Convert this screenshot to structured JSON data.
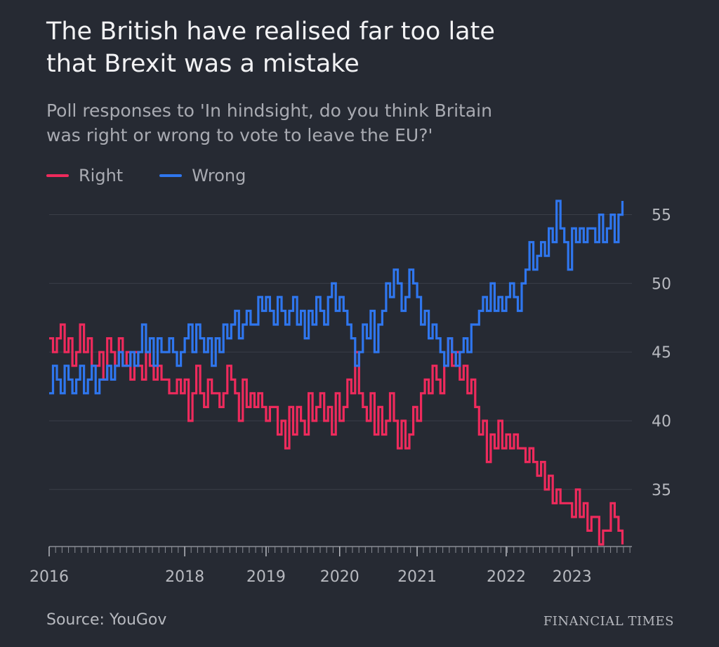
{
  "header": {
    "title_line1": "The British have realised far too late",
    "title_line2": "that Brexit was a mistake",
    "subtitle_line1": "Poll responses to 'In hindsight, do you think Britain",
    "subtitle_line2": "was right or wrong to vote to leave the EU?'"
  },
  "legend": {
    "right_label": "Right",
    "wrong_label": "Wrong"
  },
  "footer": {
    "source": "Source: YouGov",
    "brand": "FINANCIAL TIMES"
  },
  "colors": {
    "background": "#262a33",
    "right": "#ee2a5c",
    "wrong": "#2f76ee",
    "grid": "#3a3e48",
    "axis_text": "#b7b9bf"
  },
  "chart_data": {
    "type": "line",
    "title": "The British have realised far too late that Brexit was a mistake",
    "subtitle": "Poll responses to 'In hindsight, do you think Britain was right or wrong to vote to leave the EU?'",
    "xlabel": "",
    "ylabel": "",
    "ylim": [
      31,
      56
    ],
    "yticks": [
      35,
      40,
      45,
      50,
      55
    ],
    "xticks": [
      {
        "label": "2016",
        "x": 2016.0
      },
      {
        "label": "2018",
        "x": 2017.75
      },
      {
        "label": "2019",
        "x": 2018.8
      },
      {
        "label": "2020",
        "x": 2019.75
      },
      {
        "label": "2021",
        "x": 2020.75
      },
      {
        "label": "2022",
        "x": 2021.9
      },
      {
        "label": "2023",
        "x": 2022.75
      }
    ],
    "xlim": [
      2016.0,
      2023.55
    ],
    "grid": true,
    "legend_position": "top-left",
    "series": [
      {
        "name": "Right",
        "points": [
          [
            2016.0,
            46
          ],
          [
            2016.05,
            45
          ],
          [
            2016.1,
            46
          ],
          [
            2016.15,
            47
          ],
          [
            2016.2,
            45
          ],
          [
            2016.25,
            46
          ],
          [
            2016.3,
            44
          ],
          [
            2016.35,
            45
          ],
          [
            2016.4,
            47
          ],
          [
            2016.45,
            45
          ],
          [
            2016.5,
            46
          ],
          [
            2016.55,
            44
          ],
          [
            2016.6,
            44
          ],
          [
            2016.65,
            45
          ],
          [
            2016.7,
            43
          ],
          [
            2016.75,
            46
          ],
          [
            2016.8,
            45
          ],
          [
            2016.85,
            44
          ],
          [
            2016.9,
            46
          ],
          [
            2016.95,
            44
          ],
          [
            2017.0,
            45
          ],
          [
            2017.05,
            43
          ],
          [
            2017.1,
            45
          ],
          [
            2017.15,
            44
          ],
          [
            2017.2,
            43
          ],
          [
            2017.25,
            45
          ],
          [
            2017.3,
            44
          ],
          [
            2017.35,
            43
          ],
          [
            2017.4,
            44
          ],
          [
            2017.45,
            43
          ],
          [
            2017.5,
            43
          ],
          [
            2017.55,
            42
          ],
          [
            2017.6,
            42
          ],
          [
            2017.65,
            43
          ],
          [
            2017.7,
            42
          ],
          [
            2017.75,
            43
          ],
          [
            2017.8,
            40
          ],
          [
            2017.85,
            42
          ],
          [
            2017.9,
            44
          ],
          [
            2017.95,
            42
          ],
          [
            2018.0,
            41
          ],
          [
            2018.05,
            43
          ],
          [
            2018.1,
            42
          ],
          [
            2018.15,
            42
          ],
          [
            2018.2,
            41
          ],
          [
            2018.25,
            42
          ],
          [
            2018.3,
            44
          ],
          [
            2018.35,
            43
          ],
          [
            2018.4,
            42
          ],
          [
            2018.45,
            40
          ],
          [
            2018.5,
            43
          ],
          [
            2018.55,
            41
          ],
          [
            2018.6,
            42
          ],
          [
            2018.65,
            41
          ],
          [
            2018.7,
            42
          ],
          [
            2018.75,
            41
          ],
          [
            2018.8,
            40
          ],
          [
            2018.85,
            41
          ],
          [
            2018.9,
            41
          ],
          [
            2018.95,
            39
          ],
          [
            2019.0,
            40
          ],
          [
            2019.05,
            38
          ],
          [
            2019.1,
            41
          ],
          [
            2019.15,
            39
          ],
          [
            2019.2,
            41
          ],
          [
            2019.25,
            40
          ],
          [
            2019.3,
            39
          ],
          [
            2019.35,
            42
          ],
          [
            2019.4,
            40
          ],
          [
            2019.45,
            41
          ],
          [
            2019.5,
            42
          ],
          [
            2019.55,
            40
          ],
          [
            2019.6,
            41
          ],
          [
            2019.65,
            39
          ],
          [
            2019.7,
            42
          ],
          [
            2019.75,
            40
          ],
          [
            2019.8,
            41
          ],
          [
            2019.85,
            43
          ],
          [
            2019.9,
            42
          ],
          [
            2019.95,
            45
          ],
          [
            2020.0,
            42
          ],
          [
            2020.05,
            41
          ],
          [
            2020.1,
            40
          ],
          [
            2020.15,
            42
          ],
          [
            2020.2,
            39
          ],
          [
            2020.25,
            41
          ],
          [
            2020.3,
            39
          ],
          [
            2020.35,
            40
          ],
          [
            2020.4,
            42
          ],
          [
            2020.45,
            40
          ],
          [
            2020.5,
            38
          ],
          [
            2020.55,
            40
          ],
          [
            2020.6,
            38
          ],
          [
            2020.65,
            39
          ],
          [
            2020.7,
            41
          ],
          [
            2020.75,
            40
          ],
          [
            2020.8,
            42
          ],
          [
            2020.85,
            43
          ],
          [
            2020.9,
            42
          ],
          [
            2020.95,
            44
          ],
          [
            2021.0,
            43
          ],
          [
            2021.05,
            42
          ],
          [
            2021.1,
            44
          ],
          [
            2021.15,
            46
          ],
          [
            2021.2,
            44
          ],
          [
            2021.25,
            45
          ],
          [
            2021.3,
            43
          ],
          [
            2021.35,
            44
          ],
          [
            2021.4,
            42
          ],
          [
            2021.45,
            43
          ],
          [
            2021.5,
            41
          ],
          [
            2021.55,
            39
          ],
          [
            2021.6,
            40
          ],
          [
            2021.65,
            37
          ],
          [
            2021.7,
            39
          ],
          [
            2021.75,
            38
          ],
          [
            2021.8,
            40
          ],
          [
            2021.85,
            38
          ],
          [
            2021.9,
            39
          ],
          [
            2021.95,
            38
          ],
          [
            2022.0,
            39
          ],
          [
            2022.05,
            38
          ],
          [
            2022.1,
            38
          ],
          [
            2022.15,
            37
          ],
          [
            2022.2,
            38
          ],
          [
            2022.25,
            37
          ],
          [
            2022.3,
            36
          ],
          [
            2022.35,
            37
          ],
          [
            2022.4,
            35
          ],
          [
            2022.45,
            36
          ],
          [
            2022.5,
            34
          ],
          [
            2022.55,
            35
          ],
          [
            2022.6,
            34
          ],
          [
            2022.65,
            34
          ],
          [
            2022.7,
            34
          ],
          [
            2022.75,
            33
          ],
          [
            2022.8,
            35
          ],
          [
            2022.85,
            33
          ],
          [
            2022.9,
            34
          ],
          [
            2022.95,
            32
          ],
          [
            2023.0,
            33
          ],
          [
            2023.05,
            33
          ],
          [
            2023.1,
            31
          ],
          [
            2023.15,
            32
          ],
          [
            2023.2,
            32
          ],
          [
            2023.25,
            34
          ],
          [
            2023.3,
            33
          ],
          [
            2023.35,
            32
          ],
          [
            2023.4,
            31
          ]
        ]
      },
      {
        "name": "Wrong",
        "points": [
          [
            2016.0,
            42
          ],
          [
            2016.05,
            44
          ],
          [
            2016.1,
            43
          ],
          [
            2016.15,
            42
          ],
          [
            2016.2,
            44
          ],
          [
            2016.25,
            43
          ],
          [
            2016.3,
            42
          ],
          [
            2016.35,
            43
          ],
          [
            2016.4,
            44
          ],
          [
            2016.45,
            42
          ],
          [
            2016.5,
            43
          ],
          [
            2016.55,
            44
          ],
          [
            2016.6,
            42
          ],
          [
            2016.65,
            43
          ],
          [
            2016.7,
            43
          ],
          [
            2016.75,
            44
          ],
          [
            2016.8,
            43
          ],
          [
            2016.85,
            44
          ],
          [
            2016.9,
            45
          ],
          [
            2016.95,
            44
          ],
          [
            2017.0,
            44
          ],
          [
            2017.05,
            45
          ],
          [
            2017.1,
            44
          ],
          [
            2017.15,
            45
          ],
          [
            2017.2,
            47
          ],
          [
            2017.25,
            45
          ],
          [
            2017.3,
            46
          ],
          [
            2017.35,
            44
          ],
          [
            2017.4,
            46
          ],
          [
            2017.45,
            45
          ],
          [
            2017.5,
            45
          ],
          [
            2017.55,
            46
          ],
          [
            2017.6,
            45
          ],
          [
            2017.65,
            44
          ],
          [
            2017.7,
            45
          ],
          [
            2017.75,
            46
          ],
          [
            2017.8,
            47
          ],
          [
            2017.85,
            45
          ],
          [
            2017.9,
            47
          ],
          [
            2017.95,
            46
          ],
          [
            2018.0,
            45
          ],
          [
            2018.05,
            46
          ],
          [
            2018.1,
            44
          ],
          [
            2018.15,
            46
          ],
          [
            2018.2,
            45
          ],
          [
            2018.25,
            47
          ],
          [
            2018.3,
            46
          ],
          [
            2018.35,
            47
          ],
          [
            2018.4,
            48
          ],
          [
            2018.45,
            46
          ],
          [
            2018.5,
            47
          ],
          [
            2018.55,
            48
          ],
          [
            2018.6,
            47
          ],
          [
            2018.65,
            47
          ],
          [
            2018.7,
            49
          ],
          [
            2018.75,
            48
          ],
          [
            2018.8,
            49
          ],
          [
            2018.85,
            48
          ],
          [
            2018.9,
            47
          ],
          [
            2018.95,
            49
          ],
          [
            2019.0,
            48
          ],
          [
            2019.05,
            47
          ],
          [
            2019.1,
            48
          ],
          [
            2019.15,
            49
          ],
          [
            2019.2,
            47
          ],
          [
            2019.25,
            48
          ],
          [
            2019.3,
            46
          ],
          [
            2019.35,
            48
          ],
          [
            2019.4,
            47
          ],
          [
            2019.45,
            49
          ],
          [
            2019.5,
            48
          ],
          [
            2019.55,
            47
          ],
          [
            2019.6,
            49
          ],
          [
            2019.65,
            50
          ],
          [
            2019.7,
            48
          ],
          [
            2019.75,
            49
          ],
          [
            2019.8,
            48
          ],
          [
            2019.85,
            47
          ],
          [
            2019.9,
            46
          ],
          [
            2019.95,
            44
          ],
          [
            2020.0,
            45
          ],
          [
            2020.05,
            47
          ],
          [
            2020.1,
            46
          ],
          [
            2020.15,
            48
          ],
          [
            2020.2,
            45
          ],
          [
            2020.25,
            47
          ],
          [
            2020.3,
            48
          ],
          [
            2020.35,
            50
          ],
          [
            2020.4,
            49
          ],
          [
            2020.45,
            51
          ],
          [
            2020.5,
            50
          ],
          [
            2020.55,
            48
          ],
          [
            2020.6,
            49
          ],
          [
            2020.65,
            51
          ],
          [
            2020.7,
            50
          ],
          [
            2020.75,
            49
          ],
          [
            2020.8,
            47
          ],
          [
            2020.85,
            48
          ],
          [
            2020.9,
            46
          ],
          [
            2020.95,
            47
          ],
          [
            2021.0,
            46
          ],
          [
            2021.05,
            45
          ],
          [
            2021.1,
            44
          ],
          [
            2021.15,
            46
          ],
          [
            2021.2,
            45
          ],
          [
            2021.25,
            44
          ],
          [
            2021.3,
            45
          ],
          [
            2021.35,
            46
          ],
          [
            2021.4,
            45
          ],
          [
            2021.45,
            47
          ],
          [
            2021.5,
            47
          ],
          [
            2021.55,
            48
          ],
          [
            2021.6,
            49
          ],
          [
            2021.65,
            48
          ],
          [
            2021.7,
            50
          ],
          [
            2021.75,
            48
          ],
          [
            2021.8,
            49
          ],
          [
            2021.85,
            48
          ],
          [
            2021.9,
            49
          ],
          [
            2021.95,
            50
          ],
          [
            2022.0,
            49
          ],
          [
            2022.05,
            48
          ],
          [
            2022.1,
            50
          ],
          [
            2022.15,
            51
          ],
          [
            2022.2,
            53
          ],
          [
            2022.25,
            51
          ],
          [
            2022.3,
            52
          ],
          [
            2022.35,
            53
          ],
          [
            2022.4,
            52
          ],
          [
            2022.45,
            54
          ],
          [
            2022.5,
            53
          ],
          [
            2022.55,
            56
          ],
          [
            2022.6,
            54
          ],
          [
            2022.65,
            53
          ],
          [
            2022.7,
            51
          ],
          [
            2022.75,
            54
          ],
          [
            2022.8,
            53
          ],
          [
            2022.85,
            54
          ],
          [
            2022.9,
            53
          ],
          [
            2022.95,
            54
          ],
          [
            2023.0,
            54
          ],
          [
            2023.05,
            53
          ],
          [
            2023.1,
            55
          ],
          [
            2023.15,
            53
          ],
          [
            2023.2,
            54
          ],
          [
            2023.25,
            55
          ],
          [
            2023.3,
            53
          ],
          [
            2023.35,
            55
          ],
          [
            2023.4,
            56
          ]
        ]
      }
    ]
  }
}
